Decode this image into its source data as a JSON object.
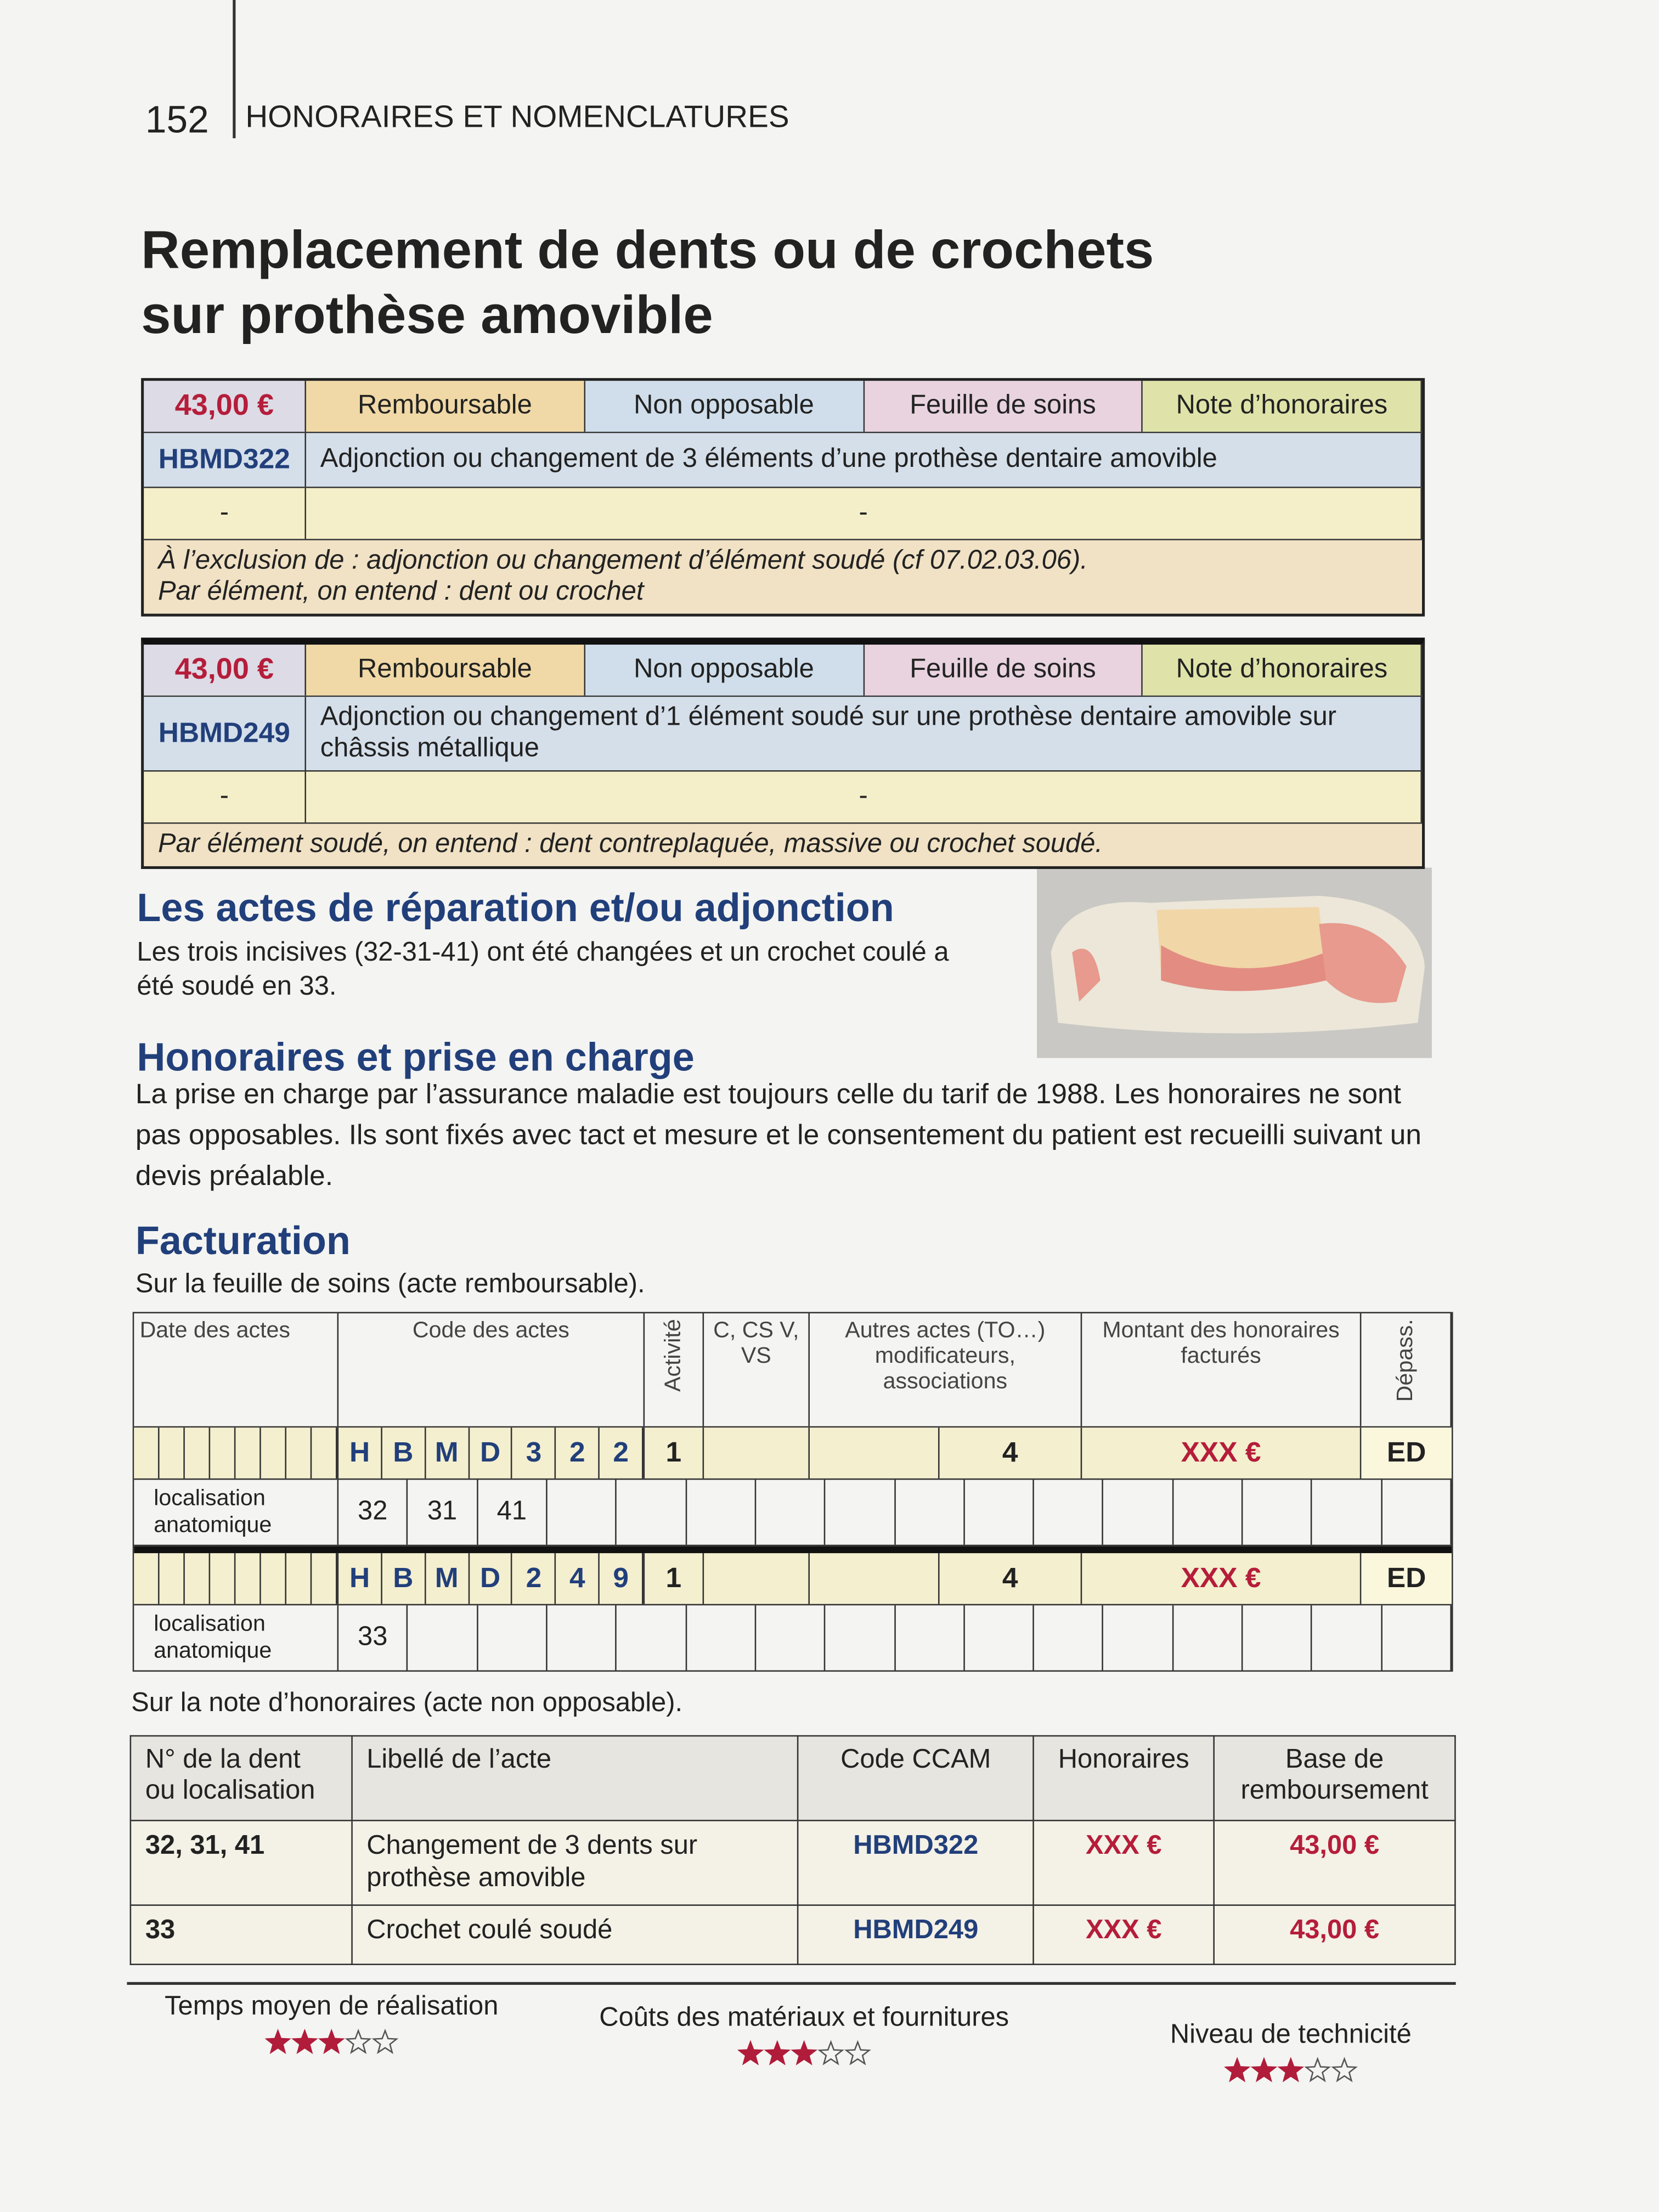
{
  "header": {
    "page_number": "152",
    "section": "HONORAIRES ET NOMENCLATURES"
  },
  "title": [
    "Remplacement de dents ou de crochets",
    "sur prothèse amovible"
  ],
  "acts": [
    {
      "price": "43,00 €",
      "tags": [
        "Remboursable",
        "Non opposable",
        "Feuille de soins",
        "Note d’honoraires"
      ],
      "code": "HBMD322",
      "label": "Adjonction ou changement de 3 éléments d’une prothèse dentaire amovible",
      "extra": [
        "-",
        "-"
      ],
      "note": [
        "À l’exclusion de : adjonction ou changement d’élément soudé (cf 07.02.03.06).",
        "Par élément, on entend : dent ou crochet"
      ]
    },
    {
      "price": "43,00 €",
      "tags": [
        "Remboursable",
        "Non opposable",
        "Feuille de soins",
        "Note d’honoraires"
      ],
      "code": "HBMD249",
      "label": "Adjonction ou changement d’1 élément soudé sur une prothèse dentaire amovible sur châssis métallique",
      "extra": [
        "-",
        "-"
      ],
      "note": [
        "Par élément soudé, on entend : dent contreplaquée, massive ou crochet soudé."
      ]
    }
  ],
  "repair": {
    "heading": "Les actes de réparation et/ou adjonction",
    "text": "Les trois incisives (32-31-41) ont été changées et un crochet coulé a été soudé en 33."
  },
  "fees": {
    "heading": "Honoraires et prise en charge",
    "text": "La prise en charge par l’assurance maladie est toujours celle du tarif de 1988. Les honoraires ne sont pas opposables. Ils sont fixés avec tact et mesure et le consentement du patient est recueilli suivant un devis préalable."
  },
  "billing": {
    "heading": "Facturation",
    "intro": "Sur la feuille de soins (acte remboursable).",
    "headers": {
      "date": "Date des actes",
      "code": "Code des actes",
      "activity": "Activité",
      "visit": "C, CS V, VS",
      "other": "Autres actes (TO…) modificateurs, associations",
      "amount": "Montant des honoraires facturés",
      "overrun": "Dépass."
    },
    "rows": [
      {
        "code_letters": [
          "H",
          "B",
          "M",
          "D",
          "3",
          "2",
          "2"
        ],
        "activity": "1",
        "modifier": "4",
        "amount": "XXX €",
        "overrun": "ED",
        "localisation_label": "localisation anatomique",
        "teeth": [
          "32",
          "31",
          "41"
        ]
      },
      {
        "code_letters": [
          "H",
          "B",
          "M",
          "D",
          "2",
          "4",
          "9"
        ],
        "activity": "1",
        "modifier": "4",
        "amount": "XXX €",
        "overrun": "ED",
        "localisation_label": "localisation anatomique",
        "teeth": [
          "33"
        ]
      }
    ]
  },
  "note_table": {
    "intro": "Sur la note d’honoraires (acte non opposable).",
    "headers": [
      "N° de la dent ou localisation",
      "Libellé de l’acte",
      "Code CCAM",
      "Honoraires",
      "Base de remboursement"
    ],
    "rows": [
      [
        "32, 31, 41",
        "Changement de 3 dents sur prothèse amovible",
        "HBMD322",
        "XXX €",
        "43,00 €"
      ],
      [
        "33",
        "Crochet coulé soudé",
        "HBMD249",
        "XXX €",
        "43,00 €"
      ]
    ]
  },
  "ratings": [
    {
      "label": "Temps moyen de réalisation",
      "rating": 3,
      "max": 5
    },
    {
      "label": "Coûts des matériaux et fournitures",
      "rating": 3,
      "max": 5
    },
    {
      "label": "Niveau de technicité",
      "rating": 3,
      "max": 5
    }
  ]
}
